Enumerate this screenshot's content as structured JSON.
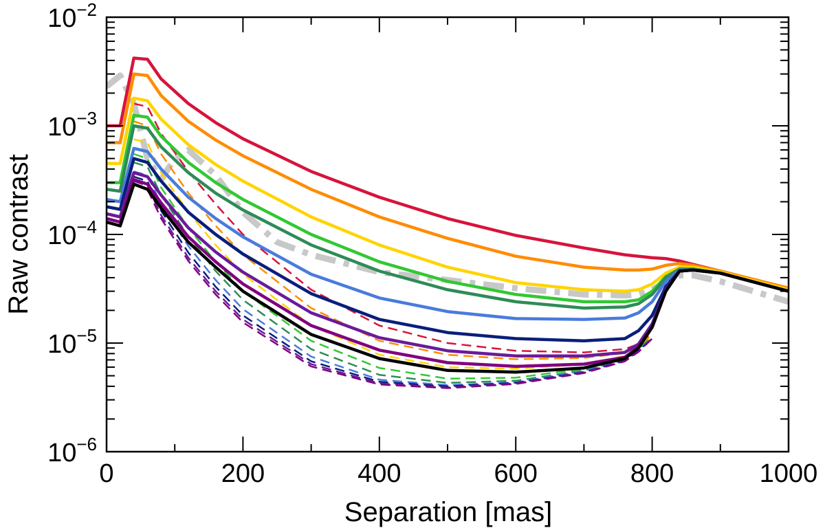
{
  "chart_data": {
    "type": "line",
    "title": "",
    "xlabel": "Separation [mas]",
    "ylabel": "Raw contrast",
    "xlim": [
      0,
      1000
    ],
    "ylim": [
      1e-06,
      0.01
    ],
    "yscale": "log",
    "grid": false,
    "legend": "none",
    "xticks": [
      {
        "value": 0,
        "label": "0"
      },
      {
        "value": 200,
        "label": "200"
      },
      {
        "value": 400,
        "label": "400"
      },
      {
        "value": 600,
        "label": "600"
      },
      {
        "value": 800,
        "label": "800"
      },
      {
        "value": 1000,
        "label": "1000"
      }
    ],
    "yticks": [
      {
        "value": 1e-06,
        "base": "10",
        "exp": "−6"
      },
      {
        "value": 1e-05,
        "base": "10",
        "exp": "−5"
      },
      {
        "value": 0.0001,
        "base": "10",
        "exp": "−4"
      },
      {
        "value": 0.001,
        "base": "10",
        "exp": "−3"
      },
      {
        "value": 0.01,
        "base": "10",
        "exp": "−2"
      }
    ],
    "series": [
      {
        "name": "solid-red",
        "color": "#d6143c",
        "style": "solid",
        "x": [
          0,
          20,
          40,
          60,
          80,
          120,
          160,
          200,
          300,
          400,
          500,
          600,
          700,
          760,
          780,
          800,
          820,
          840,
          860,
          900,
          1000
        ],
        "y": [
          0.001,
          0.001,
          0.0042,
          0.0041,
          0.0027,
          0.0016,
          0.00107,
          0.00076,
          0.00038,
          0.00022,
          0.00014,
          9.8e-05,
          7.5e-05,
          6.5e-05,
          6.3e-05,
          6.1e-05,
          6e-05,
          5.7e-05,
          5.3e-05,
          4.6e-05,
          3.2e-05
        ]
      },
      {
        "name": "solid-orange",
        "color": "#ff8c00",
        "style": "solid",
        "x": [
          0,
          20,
          40,
          60,
          80,
          120,
          160,
          200,
          300,
          400,
          500,
          600,
          700,
          760,
          780,
          800,
          820,
          840,
          860,
          900,
          1000
        ],
        "y": [
          0.0007,
          0.0007,
          0.003,
          0.0029,
          0.0019,
          0.0011,
          0.00074,
          0.00053,
          0.00026,
          0.000145,
          9.2e-05,
          6.3e-05,
          5e-05,
          4.7e-05,
          4.7e-05,
          4.8e-05,
          5.2e-05,
          5.4e-05,
          5.2e-05,
          4.6e-05,
          3.2e-05
        ]
      },
      {
        "name": "solid-yellow",
        "color": "#ffd400",
        "style": "solid",
        "x": [
          0,
          20,
          40,
          60,
          80,
          120,
          160,
          200,
          300,
          400,
          500,
          600,
          700,
          760,
          780,
          800,
          820,
          840,
          860,
          900,
          1000
        ],
        "y": [
          0.00045,
          0.00045,
          0.0018,
          0.0017,
          0.00115,
          0.00067,
          0.00044,
          0.00031,
          0.000145,
          8e-05,
          5e-05,
          3.6e-05,
          3.1e-05,
          3e-05,
          3.1e-05,
          3.5e-05,
          4.4e-05,
          5e-05,
          5e-05,
          4.5e-05,
          3.1e-05
        ]
      },
      {
        "name": "solid-green",
        "color": "#32c832",
        "style": "solid",
        "x": [
          0,
          20,
          40,
          60,
          80,
          120,
          160,
          200,
          300,
          400,
          500,
          600,
          700,
          760,
          780,
          800,
          820,
          840,
          860,
          900,
          1000
        ],
        "y": [
          0.0003,
          0.0003,
          0.00125,
          0.0012,
          0.0008,
          0.00046,
          0.0003,
          0.00021,
          0.0001,
          5.6e-05,
          3.7e-05,
          2.8e-05,
          2.4e-05,
          2.4e-05,
          2.5e-05,
          3e-05,
          4.1e-05,
          4.8e-05,
          4.8e-05,
          4.4e-05,
          3e-05
        ]
      },
      {
        "name": "solid-darkgreen",
        "color": "#2e8b57",
        "style": "solid",
        "x": [
          0,
          20,
          40,
          60,
          80,
          120,
          160,
          200,
          300,
          400,
          500,
          600,
          700,
          760,
          780,
          800,
          820,
          840,
          860,
          900,
          1000
        ],
        "y": [
          0.00026,
          0.00025,
          0.001,
          0.00095,
          0.00064,
          0.00037,
          0.00024,
          0.000168,
          8e-05,
          4.6e-05,
          3.1e-05,
          2.4e-05,
          2.1e-05,
          2.15e-05,
          2.3e-05,
          2.8e-05,
          4e-05,
          4.8e-05,
          4.8e-05,
          4.4e-05,
          3e-05
        ]
      },
      {
        "name": "solid-blue",
        "color": "#4a7bdc",
        "style": "solid",
        "x": [
          0,
          20,
          40,
          60,
          80,
          120,
          160,
          200,
          300,
          400,
          500,
          600,
          700,
          760,
          780,
          800,
          820,
          840,
          860,
          900,
          1000
        ],
        "y": [
          0.00021,
          0.0002,
          0.00062,
          0.00058,
          0.0004,
          0.00022,
          0.00014,
          9.5e-05,
          4.3e-05,
          2.6e-05,
          1.95e-05,
          1.68e-05,
          1.65e-05,
          1.7e-05,
          1.9e-05,
          2.4e-05,
          3.7e-05,
          4.7e-05,
          4.7e-05,
          4.4e-05,
          3e-05
        ]
      },
      {
        "name": "solid-navy",
        "color": "#0a1e7a",
        "style": "solid",
        "x": [
          0,
          20,
          40,
          60,
          80,
          120,
          160,
          200,
          300,
          400,
          500,
          600,
          700,
          760,
          780,
          800,
          820,
          840,
          860,
          900,
          1000
        ],
        "y": [
          0.00018,
          0.00017,
          0.0005,
          0.00046,
          0.00031,
          0.00016,
          0.0001,
          6.6e-05,
          2.85e-05,
          1.65e-05,
          1.25e-05,
          1.1e-05,
          1.05e-05,
          1.1e-05,
          1.3e-05,
          1.8e-05,
          3.3e-05,
          4.6e-05,
          4.7e-05,
          4.4e-05,
          3e-05
        ]
      },
      {
        "name": "solid-purple",
        "color": "#6a1b9a",
        "style": "solid",
        "x": [
          0,
          20,
          40,
          60,
          80,
          120,
          160,
          200,
          300,
          400,
          500,
          600,
          700,
          760,
          780,
          800,
          820,
          840,
          860,
          900,
          1000
        ],
        "y": [
          0.000155,
          0.000145,
          0.00037,
          0.00034,
          0.00023,
          0.000115,
          6.9e-05,
          4.5e-05,
          1.9e-05,
          1.12e-05,
          8.5e-06,
          7.6e-06,
          7.6e-06,
          8.2e-06,
          9.8e-06,
          1.5e-05,
          3.1e-05,
          4.6e-05,
          4.7e-05,
          4.4e-05,
          3e-05
        ]
      },
      {
        "name": "solid-violet",
        "color": "#800080",
        "style": "solid",
        "x": [
          0,
          20,
          40,
          60,
          80,
          120,
          160,
          200,
          300,
          400,
          500,
          600,
          700,
          760,
          780,
          800,
          820,
          840,
          860,
          900,
          1000
        ],
        "y": [
          0.00014,
          0.00013,
          0.00032,
          0.00029,
          0.000195,
          9.5e-05,
          5.6e-05,
          3.5e-05,
          1.45e-05,
          8.6e-06,
          6.6e-06,
          6.1e-06,
          6.4e-06,
          7.4e-06,
          9.2e-06,
          1.4e-05,
          3e-05,
          4.6e-05,
          4.7e-05,
          4.4e-05,
          3e-05
        ]
      },
      {
        "name": "solid-black",
        "color": "#000000",
        "style": "solid",
        "x": [
          0,
          20,
          40,
          60,
          80,
          120,
          160,
          200,
          300,
          400,
          500,
          600,
          700,
          760,
          780,
          800,
          820,
          840,
          860,
          900,
          1000
        ],
        "y": [
          0.00013,
          0.00012,
          0.00029,
          0.00026,
          0.000175,
          8.5e-05,
          5e-05,
          3e-05,
          1.2e-05,
          7.2e-06,
          5.6e-06,
          5.4e-06,
          5.9e-06,
          7.2e-06,
          9e-06,
          1.4e-05,
          3e-05,
          4.6e-05,
          4.7e-05,
          4.4e-05,
          3e-05
        ]
      },
      {
        "name": "dashed-red",
        "color": "#d6143c",
        "style": "dashed",
        "x": [
          40,
          60,
          80,
          120,
          160,
          200,
          300,
          400,
          500,
          600,
          700,
          760,
          780,
          800
        ],
        "y": [
          0.0016,
          0.0015,
          0.00085,
          0.00038,
          0.00019,
          0.0001,
          3.1e-05,
          1.45e-05,
          1e-05,
          8.5e-06,
          8.2e-06,
          8.8e-06,
          9.8e-06,
          1.2e-05
        ]
      },
      {
        "name": "dashed-orange",
        "color": "#ff8c00",
        "style": "dashed",
        "x": [
          40,
          60,
          80,
          120,
          160,
          200,
          300,
          400,
          500,
          600,
          700,
          760,
          780,
          800
        ],
        "y": [
          0.0011,
          0.001,
          0.00055,
          0.00024,
          0.00012,
          6.5e-05,
          2.1e-05,
          1.05e-05,
          7.8e-06,
          7.1e-06,
          7.3e-06,
          8.1e-06,
          9.4e-06,
          1.2e-05
        ]
      },
      {
        "name": "dashed-yellow",
        "color": "#ffd400",
        "style": "dashed",
        "x": [
          40,
          60,
          80,
          120,
          160,
          200,
          300,
          400,
          500,
          600,
          700,
          760,
          780,
          800
        ],
        "y": [
          0.00075,
          0.0007,
          0.00037,
          0.00016,
          8e-05,
          4.3e-05,
          1.45e-05,
          7.8e-06,
          6e-06,
          5.8e-06,
          6.4e-06,
          7.6e-06,
          9e-06,
          1.15e-05
        ]
      },
      {
        "name": "dashed-green",
        "color": "#32c832",
        "style": "dashed",
        "x": [
          40,
          60,
          80,
          120,
          160,
          200,
          300,
          400,
          500,
          600,
          700,
          760,
          780,
          800
        ],
        "y": [
          0.00055,
          0.0005,
          0.00027,
          0.000115,
          5.6e-05,
          3e-05,
          1.05e-05,
          5.9e-06,
          4.7e-06,
          4.8e-06,
          5.8e-06,
          7.2e-06,
          8.8e-06,
          1.15e-05
        ]
      },
      {
        "name": "dashed-darkgreen",
        "color": "#2e8b57",
        "style": "dashed",
        "x": [
          40,
          60,
          80,
          120,
          160,
          200,
          300,
          400,
          500,
          600,
          700,
          760,
          780,
          800
        ],
        "y": [
          0.00046,
          0.00042,
          0.00023,
          9.6e-05,
          4.6e-05,
          2.5e-05,
          8.8e-06,
          5.1e-06,
          4.3e-06,
          4.5e-06,
          5.6e-06,
          7.1e-06,
          8.7e-06,
          1.15e-05
        ]
      },
      {
        "name": "dashed-blue",
        "color": "#4a7bdc",
        "style": "dashed",
        "x": [
          40,
          60,
          80,
          120,
          160,
          200,
          300,
          400,
          500,
          600,
          700,
          760,
          780,
          800
        ],
        "y": [
          0.00038,
          0.00035,
          0.00019,
          7.8e-05,
          3.8e-05,
          2.05e-05,
          7.5e-06,
          4.6e-06,
          4.1e-06,
          4.35e-06,
          5.5e-06,
          7e-06,
          8.6e-06,
          1.1e-05
        ]
      },
      {
        "name": "dashed-navy",
        "color": "#0a1e7a",
        "style": "dashed",
        "x": [
          40,
          60,
          80,
          120,
          160,
          200,
          300,
          400,
          500,
          600,
          700,
          760,
          780,
          800
        ],
        "y": [
          0.00034,
          0.00031,
          0.000165,
          6.8e-05,
          3.3e-05,
          1.8e-05,
          6.8e-06,
          4.4e-06,
          4e-06,
          4.3e-06,
          5.4e-06,
          6.9e-06,
          8.5e-06,
          1.1e-05
        ]
      },
      {
        "name": "dashed-purple",
        "color": "#6a1b9a",
        "style": "dashed",
        "x": [
          40,
          60,
          80,
          120,
          160,
          200,
          300,
          400,
          500,
          600,
          700,
          760,
          780,
          800
        ],
        "y": [
          0.00031,
          0.00028,
          0.00015,
          6.1e-05,
          3e-05,
          1.65e-05,
          6.4e-06,
          4.25e-06,
          3.9e-06,
          4.25e-06,
          5.35e-06,
          6.85e-06,
          8.4e-06,
          1.1e-05
        ]
      },
      {
        "name": "dashed-violet",
        "color": "#800080",
        "style": "dashed",
        "x": [
          40,
          60,
          80,
          120,
          160,
          200,
          300,
          400,
          500,
          600,
          700,
          760,
          780,
          800
        ],
        "y": [
          0.00029,
          0.00026,
          0.00014,
          5.7e-05,
          2.8e-05,
          1.55e-05,
          6.1e-06,
          4.15e-06,
          3.85e-06,
          4.2e-06,
          5.3e-06,
          6.8e-06,
          8.3e-06,
          1.1e-05
        ]
      },
      {
        "name": "dashdot-gray-thick",
        "color": "#c8c8c8",
        "style": "dashdot",
        "x": [
          0,
          20,
          40,
          60,
          80,
          100,
          120,
          160,
          200,
          250,
          300,
          400,
          500,
          600,
          700,
          760,
          780,
          800,
          820,
          840,
          860,
          900,
          1000
        ],
        "y": [
          0.0023,
          0.0029,
          0.0016,
          0.0005,
          0.00032,
          0.0005,
          0.0006,
          0.00035,
          0.00016,
          8.5e-05,
          6.5e-05,
          4.5e-05,
          3.8e-05,
          3.2e-05,
          2.8e-05,
          2.75e-05,
          2.8e-05,
          3.1e-05,
          3.6e-05,
          4.2e-05,
          4.2e-05,
          3.7e-05,
          2.4e-05
        ]
      }
    ]
  }
}
